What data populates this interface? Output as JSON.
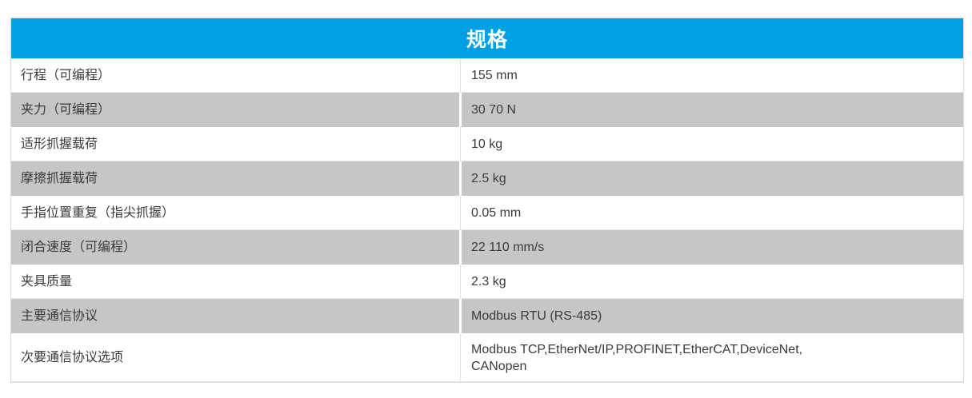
{
  "table": {
    "title": "规格",
    "rows": [
      {
        "label": "行程（可编程）",
        "value": "155 mm"
      },
      {
        "label": "夹力（可编程）",
        "value": "30 70 N"
      },
      {
        "label": "适形抓握载荷",
        "value": "10 kg"
      },
      {
        "label": "摩擦抓握载荷",
        "value": "2.5 kg"
      },
      {
        "label": "手指位置重复（指尖抓握）",
        "value": "0.05 mm"
      },
      {
        "label": "闭合速度（可编程）",
        "value": "22 110 mm/s"
      },
      {
        "label": "夹具质量",
        "value": "2.3 kg"
      },
      {
        "label": "主要通信协议",
        "value": "Modbus RTU (RS-485)"
      },
      {
        "label": "次要通信协议选项",
        "value": "Modbus TCP,EtherNet/IP,PROFINET,EtherCAT,DeviceNet,\nCANopen"
      }
    ],
    "colors": {
      "header_bg": "#009FE2",
      "header_text": "#FFFFFF",
      "row_alt_bg": "#C5C6C8",
      "row_bg": "#FFFFFF",
      "text": "#3A3A3A",
      "border": "#DBDBDB"
    }
  }
}
